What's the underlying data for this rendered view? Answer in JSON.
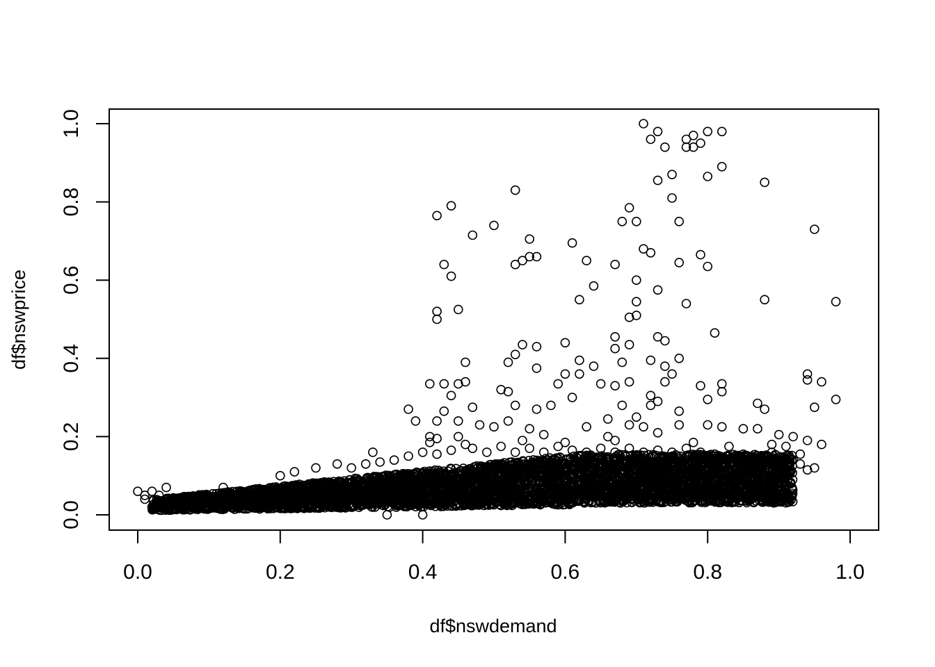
{
  "chart_data": {
    "type": "scatter",
    "title": "",
    "xlabel": "df$nswdemand",
    "ylabel": "df$nswprice",
    "xlim": [
      0.0,
      1.0
    ],
    "ylim": [
      0.0,
      1.0
    ],
    "x_ticks": [
      "0.0",
      "0.2",
      "0.4",
      "0.6",
      "0.8",
      "1.0"
    ],
    "y_ticks": [
      "0.0",
      "0.2",
      "0.4",
      "0.6",
      "0.8",
      "1.0"
    ],
    "grid": false,
    "legend": "none",
    "marker": "open-circle",
    "marker_color": "#000000",
    "points": [
      [
        0.71,
        1.0
      ],
      [
        0.73,
        0.98
      ],
      [
        0.82,
        0.98
      ],
      [
        0.8,
        0.98
      ],
      [
        0.78,
        0.97
      ],
      [
        0.77,
        0.96
      ],
      [
        0.72,
        0.96
      ],
      [
        0.79,
        0.95
      ],
      [
        0.74,
        0.94
      ],
      [
        0.77,
        0.94
      ],
      [
        0.78,
        0.94
      ],
      [
        0.82,
        0.89
      ],
      [
        0.75,
        0.87
      ],
      [
        0.8,
        0.865
      ],
      [
        0.73,
        0.855
      ],
      [
        0.88,
        0.85
      ],
      [
        0.53,
        0.83
      ],
      [
        0.75,
        0.81
      ],
      [
        0.44,
        0.79
      ],
      [
        0.69,
        0.785
      ],
      [
        0.42,
        0.765
      ],
      [
        0.76,
        0.75
      ],
      [
        0.7,
        0.75
      ],
      [
        0.68,
        0.75
      ],
      [
        0.5,
        0.74
      ],
      [
        0.95,
        0.73
      ],
      [
        0.47,
        0.715
      ],
      [
        0.55,
        0.705
      ],
      [
        0.61,
        0.695
      ],
      [
        0.71,
        0.68
      ],
      [
        0.72,
        0.67
      ],
      [
        0.79,
        0.665
      ],
      [
        0.56,
        0.66
      ],
      [
        0.55,
        0.66
      ],
      [
        0.54,
        0.65
      ],
      [
        0.63,
        0.65
      ],
      [
        0.76,
        0.645
      ],
      [
        0.53,
        0.64
      ],
      [
        0.67,
        0.64
      ],
      [
        0.43,
        0.64
      ],
      [
        0.8,
        0.635
      ],
      [
        0.44,
        0.61
      ],
      [
        0.7,
        0.6
      ],
      [
        0.64,
        0.585
      ],
      [
        0.73,
        0.575
      ],
      [
        0.62,
        0.55
      ],
      [
        0.88,
        0.55
      ],
      [
        0.98,
        0.545
      ],
      [
        0.77,
        0.54
      ],
      [
        0.7,
        0.545
      ],
      [
        0.45,
        0.525
      ],
      [
        0.42,
        0.52
      ],
      [
        0.42,
        0.5
      ],
      [
        0.7,
        0.51
      ],
      [
        0.69,
        0.505
      ],
      [
        0.81,
        0.465
      ],
      [
        0.67,
        0.455
      ],
      [
        0.73,
        0.455
      ],
      [
        0.74,
        0.445
      ],
      [
        0.6,
        0.44
      ],
      [
        0.54,
        0.435
      ],
      [
        0.69,
        0.435
      ],
      [
        0.56,
        0.43
      ],
      [
        0.67,
        0.425
      ],
      [
        0.53,
        0.41
      ],
      [
        0.76,
        0.4
      ],
      [
        0.52,
        0.39
      ],
      [
        0.46,
        0.39
      ],
      [
        0.62,
        0.395
      ],
      [
        0.68,
        0.39
      ],
      [
        0.72,
        0.395
      ],
      [
        0.74,
        0.38
      ],
      [
        0.56,
        0.375
      ],
      [
        0.64,
        0.38
      ],
      [
        0.94,
        0.36
      ],
      [
        0.6,
        0.36
      ],
      [
        0.62,
        0.36
      ],
      [
        0.75,
        0.36
      ],
      [
        0.41,
        0.335
      ],
      [
        0.43,
        0.335
      ],
      [
        0.45,
        0.335
      ],
      [
        0.46,
        0.34
      ],
      [
        0.59,
        0.335
      ],
      [
        0.65,
        0.335
      ],
      [
        0.69,
        0.34
      ],
      [
        0.74,
        0.34
      ],
      [
        0.79,
        0.33
      ],
      [
        0.82,
        0.335
      ],
      [
        0.96,
        0.34
      ],
      [
        0.94,
        0.345
      ],
      [
        0.51,
        0.32
      ],
      [
        0.52,
        0.315
      ],
      [
        0.67,
        0.33
      ],
      [
        0.82,
        0.315
      ],
      [
        0.44,
        0.305
      ],
      [
        0.72,
        0.305
      ],
      [
        0.8,
        0.295
      ],
      [
        0.98,
        0.295
      ],
      [
        0.61,
        0.3
      ],
      [
        0.73,
        0.29
      ],
      [
        0.38,
        0.27
      ],
      [
        0.47,
        0.275
      ],
      [
        0.53,
        0.28
      ],
      [
        0.56,
        0.27
      ],
      [
        0.58,
        0.28
      ],
      [
        0.68,
        0.28
      ],
      [
        0.72,
        0.28
      ],
      [
        0.87,
        0.285
      ],
      [
        0.95,
        0.275
      ],
      [
        0.88,
        0.27
      ],
      [
        0.43,
        0.265
      ],
      [
        0.45,
        0.24
      ],
      [
        0.39,
        0.24
      ],
      [
        0.42,
        0.24
      ],
      [
        0.52,
        0.24
      ],
      [
        0.7,
        0.25
      ],
      [
        0.76,
        0.265
      ],
      [
        0.85,
        0.22
      ],
      [
        0.66,
        0.245
      ],
      [
        0.48,
        0.23
      ],
      [
        0.5,
        0.225
      ],
      [
        0.55,
        0.22
      ],
      [
        0.63,
        0.225
      ],
      [
        0.69,
        0.23
      ],
      [
        0.71,
        0.225
      ],
      [
        0.76,
        0.23
      ],
      [
        0.8,
        0.23
      ],
      [
        0.82,
        0.225
      ],
      [
        0.87,
        0.22
      ],
      [
        0.41,
        0.2
      ],
      [
        0.42,
        0.195
      ],
      [
        0.45,
        0.2
      ],
      [
        0.57,
        0.205
      ],
      [
        0.66,
        0.2
      ],
      [
        0.73,
        0.21
      ],
      [
        0.9,
        0.205
      ],
      [
        0.96,
        0.18
      ],
      [
        0.92,
        0.2
      ],
      [
        0.94,
        0.19
      ],
      [
        0.41,
        0.185
      ],
      [
        0.46,
        0.18
      ],
      [
        0.54,
        0.19
      ],
      [
        0.6,
        0.185
      ],
      [
        0.67,
        0.19
      ],
      [
        0.78,
        0.185
      ],
      [
        0.83,
        0.175
      ],
      [
        0.89,
        0.18
      ],
      [
        0.91,
        0.175
      ],
      [
        0.33,
        0.16
      ],
      [
        0.36,
        0.14
      ],
      [
        0.38,
        0.15
      ],
      [
        0.4,
        0.16
      ],
      [
        0.42,
        0.155
      ],
      [
        0.44,
        0.165
      ],
      [
        0.47,
        0.17
      ],
      [
        0.49,
        0.16
      ],
      [
        0.51,
        0.175
      ],
      [
        0.53,
        0.16
      ],
      [
        0.55,
        0.17
      ],
      [
        0.57,
        0.16
      ],
      [
        0.59,
        0.175
      ],
      [
        0.61,
        0.165
      ],
      [
        0.63,
        0.16
      ],
      [
        0.65,
        0.17
      ],
      [
        0.67,
        0.16
      ],
      [
        0.69,
        0.17
      ],
      [
        0.71,
        0.16
      ],
      [
        0.73,
        0.165
      ],
      [
        0.75,
        0.16
      ],
      [
        0.77,
        0.17
      ],
      [
        0.79,
        0.16
      ],
      [
        0.81,
        0.155
      ],
      [
        0.83,
        0.15
      ],
      [
        0.85,
        0.155
      ],
      [
        0.87,
        0.15
      ],
      [
        0.89,
        0.16
      ],
      [
        0.91,
        0.15
      ],
      [
        0.93,
        0.155
      ],
      [
        0.9,
        0.14
      ],
      [
        0.93,
        0.13
      ],
      [
        0.95,
        0.12
      ],
      [
        0.94,
        0.115
      ],
      [
        0.91,
        0.11
      ],
      [
        0.88,
        0.1
      ],
      [
        0.12,
        0.07
      ],
      [
        0.25,
        0.12
      ],
      [
        0.28,
        0.13
      ],
      [
        0.3,
        0.12
      ],
      [
        0.32,
        0.13
      ],
      [
        0.34,
        0.135
      ],
      [
        0.2,
        0.1
      ],
      [
        0.22,
        0.11
      ],
      [
        0.35,
        0.0
      ],
      [
        0.4,
        0.0
      ],
      [
        0.0,
        0.06
      ],
      [
        0.01,
        0.05
      ],
      [
        0.02,
        0.06
      ],
      [
        0.03,
        0.05
      ],
      [
        0.01,
        0.04
      ],
      [
        0.02,
        0.02
      ],
      [
        0.04,
        0.07
      ],
      [
        0.88,
        0.045
      ],
      [
        0.86,
        0.05
      ],
      [
        0.89,
        0.05
      ]
    ]
  }
}
